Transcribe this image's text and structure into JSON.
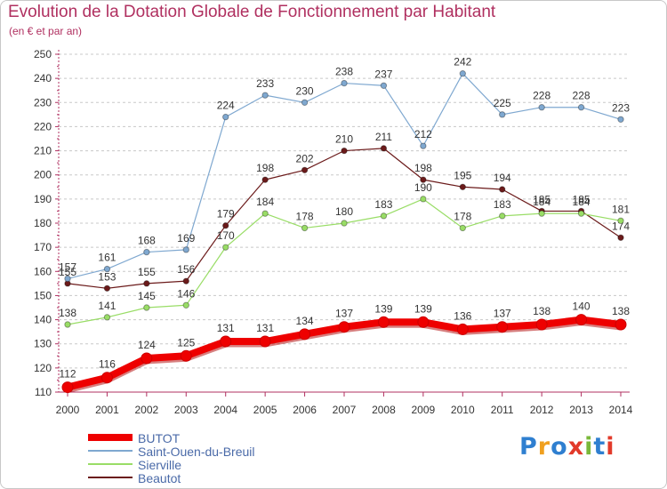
{
  "title": "Evolution de la Dotation Globale de Fonctionnement par Habitant",
  "subtitle": "(en € et par an)",
  "logo": {
    "text": "Proxiti",
    "colors": [
      "#2f7fd0",
      "#f0a020",
      "#2f7fd0",
      "#e23a2a",
      "#7ab83a",
      "#2f7fd0",
      "#e23a2a"
    ]
  },
  "colors": {
    "title": "#b03060",
    "grid": "#c8c8c8",
    "axis": "#b03060",
    "tick_text": "#333333"
  },
  "chart_data": {
    "type": "line",
    "x": [
      "2000",
      "2001",
      "2002",
      "2003",
      "2004",
      "2005",
      "2006",
      "2007",
      "2008",
      "2009",
      "2010",
      "2011",
      "2012",
      "2013",
      "2014"
    ],
    "ylim": [
      110,
      250
    ],
    "yticks": [
      110,
      120,
      130,
      140,
      150,
      160,
      170,
      180,
      190,
      200,
      210,
      220,
      230,
      240,
      250
    ],
    "grid": "horizontal dashed",
    "legend_position": "bottom-left",
    "series": [
      {
        "name": "BUTOT",
        "color": "#ee0000",
        "values": [
          112,
          116,
          124,
          125,
          131,
          131,
          134,
          137,
          139,
          139,
          136,
          137,
          138,
          140,
          138
        ]
      },
      {
        "name": "Saint-Ouen-du-Breuil",
        "color": "#7fa8d0",
        "values": [
          157,
          161,
          168,
          169,
          224,
          233,
          230,
          238,
          237,
          212,
          242,
          225,
          228,
          228,
          223
        ]
      },
      {
        "name": "Sierville",
        "color": "#99dd66",
        "values": [
          138,
          141,
          145,
          146,
          170,
          184,
          178,
          180,
          183,
          190,
          178,
          183,
          184,
          184,
          181
        ]
      },
      {
        "name": "Beautot",
        "color": "#6b1a1a",
        "values": [
          155,
          153,
          155,
          156,
          179,
          198,
          202,
          210,
          211,
          198,
          195,
          194,
          185,
          185,
          174
        ]
      }
    ]
  }
}
